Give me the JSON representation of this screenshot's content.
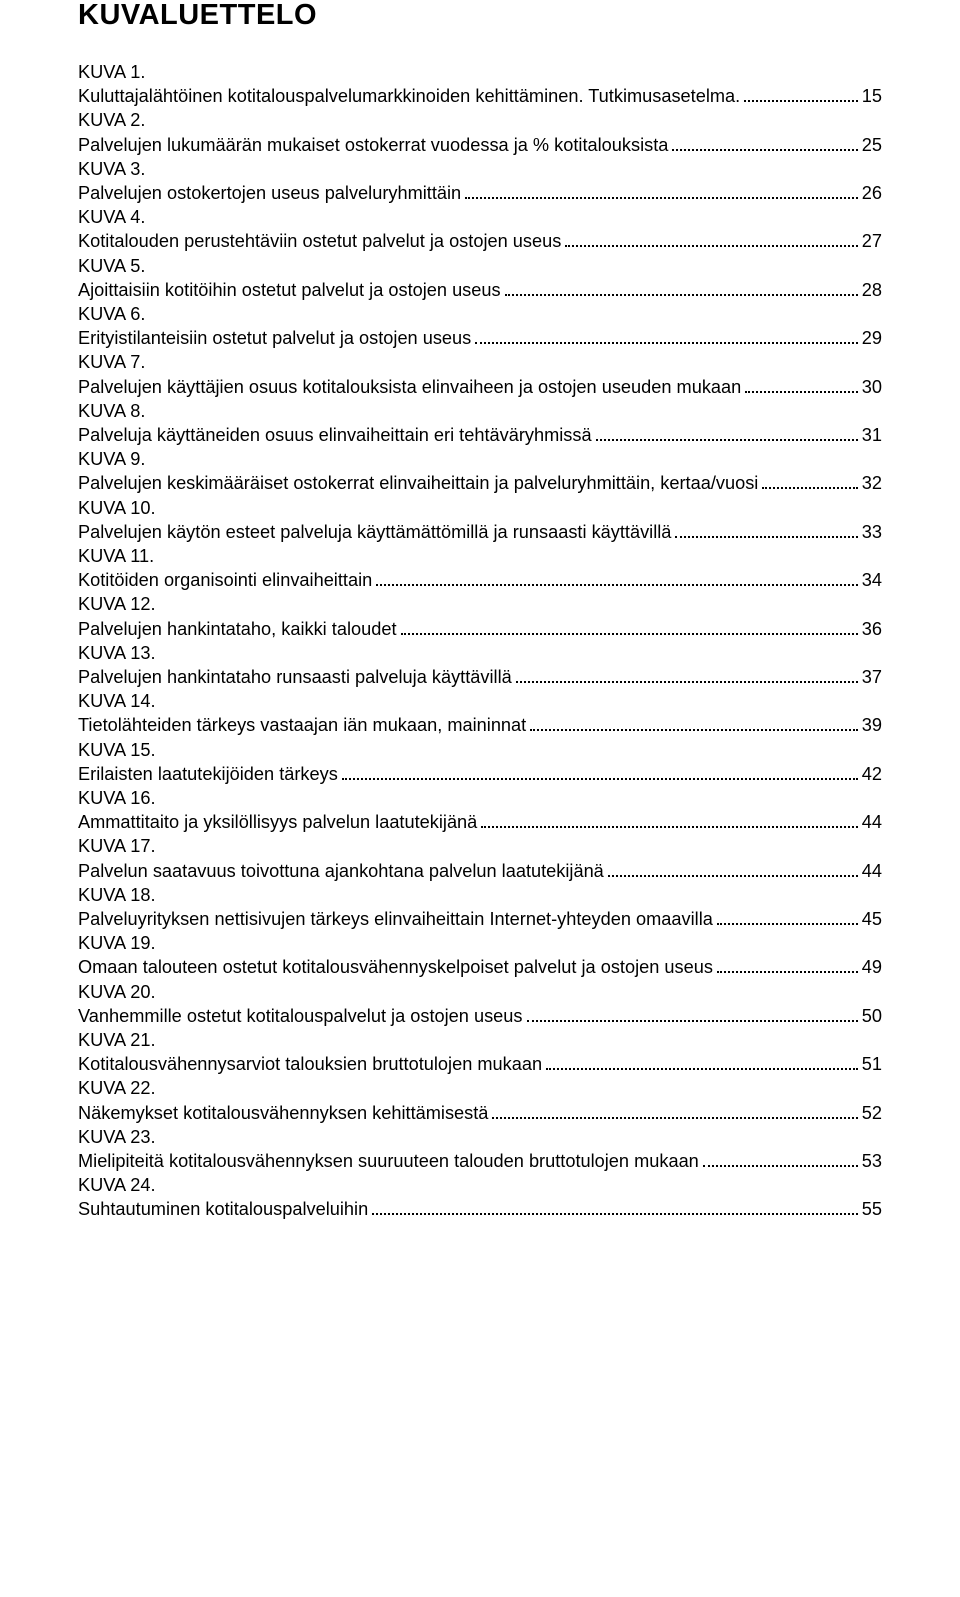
{
  "title": "KUVALUETTELO",
  "entries": [
    {
      "label": "KUVA 1.",
      "desc": "Kuluttajalähtöinen kotitalouspalvelumarkkinoiden kehittäminen. Tutkimusasetelma.",
      "page": "15"
    },
    {
      "label": "KUVA 2.",
      "desc": "Palvelujen lukumäärän mukaiset ostokerrat vuodessa ja % kotitalouksista",
      "page": "25"
    },
    {
      "label": "KUVA 3.",
      "desc": "Palvelujen ostokertojen useus palveluryhmittäin",
      "page": "26"
    },
    {
      "label": "KUVA 4.",
      "desc": "Kotitalouden perustehtäviin ostetut palvelut ja ostojen useus",
      "page": "27"
    },
    {
      "label": "KUVA 5.",
      "desc": "Ajoittaisiin kotitöihin ostetut palvelut ja ostojen useus",
      "page": "28"
    },
    {
      "label": "KUVA 6.",
      "desc": "Erityistilanteisiin ostetut palvelut ja ostojen useus",
      "page": "29"
    },
    {
      "label": "KUVA 7.",
      "desc": "Palvelujen käyttäjien osuus kotitalouksista elinvaiheen ja ostojen useuden mukaan",
      "page": "30"
    },
    {
      "label": "KUVA 8.",
      "desc": "Palveluja käyttäneiden osuus elinvaiheittain eri tehtäväryhmissä",
      "page": "31"
    },
    {
      "label": "KUVA 9.",
      "desc": "Palvelujen keskimääräiset ostokerrat elinvaiheittain ja palveluryhmittäin, kertaa/vuosi",
      "page": "32"
    },
    {
      "label": "KUVA 10.",
      "desc": "Palvelujen käytön esteet palveluja käyttämättömillä ja runsaasti käyttävillä",
      "page": "33"
    },
    {
      "label": "KUVA 11.",
      "desc": "Kotitöiden organisointi elinvaiheittain",
      "page": "34"
    },
    {
      "label": "KUVA 12.",
      "desc": "Palvelujen hankintataho, kaikki taloudet",
      "page": "36"
    },
    {
      "label": "KUVA 13.",
      "desc": "Palvelujen hankintataho runsaasti palveluja käyttävillä",
      "page": "37"
    },
    {
      "label": "KUVA 14.",
      "desc": "Tietolähteiden tärkeys vastaajan iän mukaan, maininnat",
      "page": "39"
    },
    {
      "label": "KUVA 15.",
      "desc": "Erilaisten laatutekijöiden tärkeys",
      "page": "42"
    },
    {
      "label": "KUVA 16.",
      "desc": "Ammattitaito ja yksilöllisyys palvelun laatutekijänä",
      "page": "44"
    },
    {
      "label": "KUVA 17.",
      "desc": "Palvelun saatavuus toivottuna ajankohtana palvelun laatutekijänä",
      "page": "44"
    },
    {
      "label": "KUVA 18.",
      "desc": "Palveluyrityksen nettisivujen tärkeys elinvaiheittain Internet-yhteyden omaavilla",
      "page": "45"
    },
    {
      "label": "KUVA 19.",
      "desc": "Omaan talouteen ostetut kotitalousvähennyskelpoiset palvelut ja ostojen useus",
      "page": "49"
    },
    {
      "label": "KUVA 20.",
      "desc": "Vanhemmille ostetut kotitalouspalvelut ja ostojen useus",
      "page": "50"
    },
    {
      "label": "KUVA 21.",
      "desc": "Kotitalousvähennysarviot talouksien bruttotulojen mukaan",
      "page": "51"
    },
    {
      "label": "KUVA 22.",
      "desc": "Näkemykset kotitalousvähennyksen kehittämisestä",
      "page": "52"
    },
    {
      "label": "KUVA 23.",
      "desc": "Mielipiteitä kotitalousvähennyksen suuruuteen talouden bruttotulojen mukaan",
      "page": "53"
    },
    {
      "label": "KUVA 24.",
      "desc": "Suhtautuminen kotitalouspalveluihin",
      "page": "55"
    }
  ]
}
